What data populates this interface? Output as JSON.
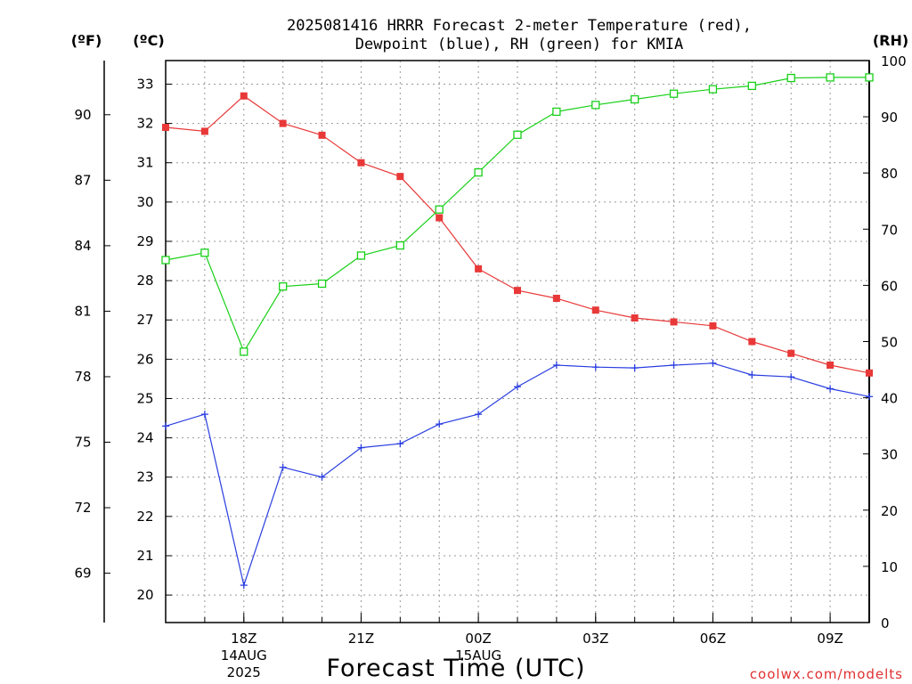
{
  "chart_data": {
    "type": "line",
    "title_line1": "2025081416 HRRR Forecast 2-meter Temperature (red),",
    "title_line2": "Dewpoint (blue), RH (green) for KMIA",
    "unit_labels": {
      "fahrenheit": "(ºF)",
      "celsius": "(ºC)",
      "rh": "(RH)"
    },
    "xlabel": "Forecast Time (UTC)",
    "credit": "coolwx.com/modelts",
    "x_hours": [
      16,
      17,
      18,
      19,
      20,
      21,
      22,
      23,
      24,
      25,
      26,
      27,
      28,
      29,
      30,
      31,
      32,
      33,
      34
    ],
    "x_ticks": [
      {
        "hour": 18,
        "label": "18Z",
        "sub1": "14AUG",
        "sub2": "2025"
      },
      {
        "hour": 21,
        "label": "21Z",
        "sub1": "",
        "sub2": ""
      },
      {
        "hour": 24,
        "label": "00Z",
        "sub1": "15AUG",
        "sub2": ""
      },
      {
        "hour": 27,
        "label": "03Z",
        "sub1": "",
        "sub2": ""
      },
      {
        "hour": 30,
        "label": "06Z",
        "sub1": "",
        "sub2": ""
      },
      {
        "hour": 33,
        "label": "09Z",
        "sub1": "",
        "sub2": ""
      }
    ],
    "y_celsius_ticks": [
      "20",
      "21",
      "22",
      "23",
      "24",
      "25",
      "26",
      "27",
      "28",
      "29",
      "30",
      "31",
      "32",
      "33"
    ],
    "y_fahrenheit_ticks": [
      "69",
      "72",
      "75",
      "78",
      "81",
      "84",
      "87",
      "90"
    ],
    "y_rh_ticks": [
      "0",
      "10",
      "20",
      "30",
      "40",
      "50",
      "60",
      "70",
      "80",
      "90",
      "100"
    ],
    "ylim_celsius": [
      19.3,
      33.6
    ],
    "ylim_rh": [
      0,
      100
    ],
    "series": [
      {
        "color": "#e83838",
        "marker": "filled-square",
        "axis": "celsius",
        "values": [
          31.9,
          31.8,
          32.7,
          32.0,
          31.7,
          31.0,
          30.65,
          29.6,
          28.3,
          27.75,
          27.55,
          27.25,
          27.05,
          26.95,
          26.85,
          26.45,
          26.15,
          25.85,
          25.65
        ]
      },
      {
        "color": "#2a3ee0",
        "marker": "plus",
        "axis": "celsius",
        "values": [
          24.3,
          24.6,
          20.25,
          23.25,
          23.0,
          23.75,
          23.85,
          24.35,
          24.6,
          25.3,
          25.85,
          25.8,
          25.78,
          25.85,
          25.9,
          25.6,
          25.55,
          25.25,
          25.05
        ]
      },
      {
        "color": "#18d018",
        "marker": "open-square",
        "axis": "rh",
        "values": [
          64.5,
          65.8,
          48.2,
          59.8,
          60.3,
          65.3,
          67.1,
          73.5,
          80.1,
          86.8,
          90.9,
          92.1,
          93.1,
          94.1,
          94.9,
          95.5,
          96.9,
          97.0,
          97.0
        ]
      }
    ],
    "grid": true
  }
}
